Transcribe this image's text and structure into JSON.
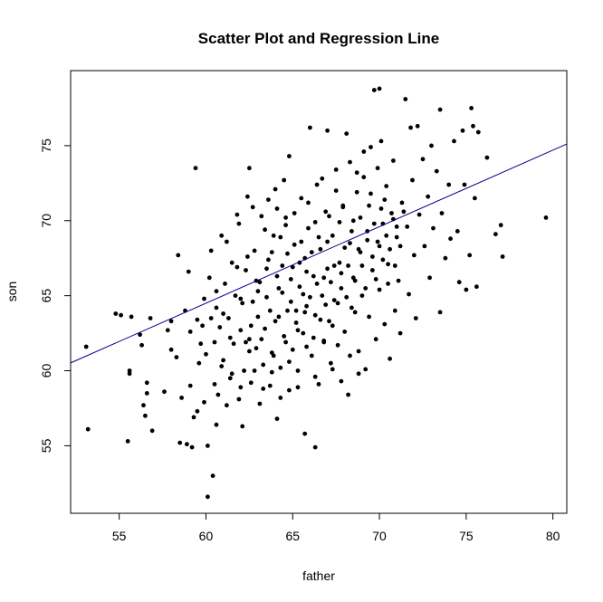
{
  "chart_data": {
    "type": "scatter",
    "title": "Scatter Plot and Regression Line",
    "xlabel": "father",
    "ylabel": "son",
    "xlim": [
      52.2,
      80.8
    ],
    "ylim": [
      50.5,
      80.0
    ],
    "xticks": [
      55,
      60,
      65,
      70,
      75,
      80
    ],
    "yticks": [
      55,
      60,
      65,
      70,
      75
    ],
    "regression_line": {
      "intercept": 33.9,
      "slope": 0.51,
      "color": "#00008b"
    },
    "point_color": "#000000",
    "points": [
      [
        53.1,
        61.6
      ],
      [
        53.2,
        56.1
      ],
      [
        54.8,
        63.8
      ],
      [
        55.1,
        63.7
      ],
      [
        55.5,
        55.3
      ],
      [
        55.6,
        59.8
      ],
      [
        55.7,
        63.6
      ],
      [
        55.6,
        60.0
      ],
      [
        56.2,
        62.4
      ],
      [
        56.3,
        61.7
      ],
      [
        56.4,
        57.7
      ],
      [
        56.5,
        57.0
      ],
      [
        56.6,
        58.5
      ],
      [
        56.6,
        59.2
      ],
      [
        56.8,
        63.5
      ],
      [
        56.9,
        56.0
      ],
      [
        57.6,
        58.6
      ],
      [
        57.8,
        62.7
      ],
      [
        58.0,
        63.3
      ],
      [
        58.0,
        61.4
      ],
      [
        58.3,
        60.9
      ],
      [
        58.4,
        67.7
      ],
      [
        58.5,
        55.2
      ],
      [
        58.6,
        58.2
      ],
      [
        58.8,
        64.0
      ],
      [
        58.9,
        55.1
      ],
      [
        59.0,
        66.6
      ],
      [
        59.1,
        59.0
      ],
      [
        59.1,
        62.6
      ],
      [
        59.2,
        54.9
      ],
      [
        59.3,
        56.9
      ],
      [
        59.4,
        73.5
      ],
      [
        59.5,
        57.3
      ],
      [
        59.6,
        60.5
      ],
      [
        59.7,
        61.8
      ],
      [
        59.8,
        63.0
      ],
      [
        59.9,
        57.9
      ],
      [
        60.0,
        61.1
      ],
      [
        60.1,
        55.0
      ],
      [
        60.1,
        51.6
      ],
      [
        60.2,
        66.2
      ],
      [
        60.3,
        63.5
      ],
      [
        60.3,
        68.0
      ],
      [
        60.4,
        53.0
      ],
      [
        60.5,
        59.1
      ],
      [
        60.6,
        56.4
      ],
      [
        60.6,
        64.2
      ],
      [
        60.7,
        58.4
      ],
      [
        60.8,
        62.9
      ],
      [
        60.9,
        69.0
      ],
      [
        61.0,
        60.7
      ],
      [
        61.1,
        65.8
      ],
      [
        61.2,
        57.7
      ],
      [
        61.3,
        63.5
      ],
      [
        61.4,
        59.5
      ],
      [
        61.5,
        67.2
      ],
      [
        61.6,
        61.8
      ],
      [
        61.7,
        65.0
      ],
      [
        61.8,
        70.4
      ],
      [
        61.9,
        58.1
      ],
      [
        62.0,
        62.7
      ],
      [
        62.1,
        64.5
      ],
      [
        62.1,
        56.3
      ],
      [
        62.2,
        60.0
      ],
      [
        62.3,
        66.7
      ],
      [
        62.4,
        71.6
      ],
      [
        62.5,
        62.1
      ],
      [
        62.5,
        73.5
      ],
      [
        62.6,
        59.2
      ],
      [
        62.7,
        64.6
      ],
      [
        62.8,
        68.0
      ],
      [
        62.9,
        61.5
      ],
      [
        63.0,
        63.6
      ],
      [
        63.1,
        65.9
      ],
      [
        63.1,
        57.8
      ],
      [
        63.2,
        70.3
      ],
      [
        63.3,
        60.4
      ],
      [
        63.4,
        62.8
      ],
      [
        63.5,
        64.9
      ],
      [
        63.6,
        67.4
      ],
      [
        63.7,
        59.0
      ],
      [
        63.8,
        61.2
      ],
      [
        63.9,
        69.0
      ],
      [
        64.0,
        63.3
      ],
      [
        64.0,
        72.1
      ],
      [
        64.1,
        56.8
      ],
      [
        64.2,
        65.5
      ],
      [
        64.3,
        60.2
      ],
      [
        64.4,
        67.0
      ],
      [
        64.5,
        62.3
      ],
      [
        64.6,
        70.2
      ],
      [
        64.7,
        64.0
      ],
      [
        64.8,
        58.7
      ],
      [
        64.8,
        74.3
      ],
      [
        64.9,
        66.1
      ],
      [
        65.0,
        61.4
      ],
      [
        65.1,
        68.4
      ],
      [
        65.2,
        63.2
      ],
      [
        65.3,
        60.0
      ],
      [
        65.4,
        65.6
      ],
      [
        65.5,
        71.5
      ],
      [
        65.6,
        62.5
      ],
      [
        65.7,
        67.5
      ],
      [
        65.7,
        55.8
      ],
      [
        65.8,
        64.3
      ],
      [
        65.9,
        69.5
      ],
      [
        66.0,
        76.2
      ],
      [
        66.1,
        61.0
      ],
      [
        66.2,
        66.3
      ],
      [
        66.3,
        63.7
      ],
      [
        66.3,
        54.9
      ],
      [
        66.4,
        72.4
      ],
      [
        66.5,
        59.1
      ],
      [
        66.6,
        68.1
      ],
      [
        66.7,
        65.0
      ],
      [
        66.8,
        62.0
      ],
      [
        66.9,
        70.6
      ],
      [
        67.0,
        66.8
      ],
      [
        67.0,
        76.0
      ],
      [
        67.1,
        63.3
      ],
      [
        67.2,
        60.5
      ],
      [
        67.3,
        69.0
      ],
      [
        67.4,
        64.7
      ],
      [
        67.5,
        73.4
      ],
      [
        67.6,
        61.7
      ],
      [
        67.7,
        67.2
      ],
      [
        67.8,
        65.5
      ],
      [
        67.9,
        71.0
      ],
      [
        68.0,
        62.6
      ],
      [
        68.1,
        75.8
      ],
      [
        68.2,
        58.4
      ],
      [
        68.3,
        68.5
      ],
      [
        68.4,
        64.2
      ],
      [
        68.5,
        70.0
      ],
      [
        68.6,
        66.0
      ],
      [
        68.7,
        73.2
      ],
      [
        68.8,
        61.3
      ],
      [
        68.9,
        67.9
      ],
      [
        69.0,
        65.0
      ],
      [
        69.1,
        74.6
      ],
      [
        69.2,
        60.1
      ],
      [
        69.3,
        69.3
      ],
      [
        69.4,
        63.6
      ],
      [
        69.5,
        71.8
      ],
      [
        69.6,
        66.7
      ],
      [
        69.7,
        78.7
      ],
      [
        69.8,
        62.1
      ],
      [
        69.9,
        68.6
      ],
      [
        70.0,
        78.8
      ],
      [
        70.0,
        65.4
      ],
      [
        70.1,
        75.3
      ],
      [
        70.2,
        69.8
      ],
      [
        70.3,
        63.1
      ],
      [
        70.4,
        72.3
      ],
      [
        70.5,
        67.1
      ],
      [
        70.6,
        60.8
      ],
      [
        70.7,
        70.5
      ],
      [
        70.8,
        74.0
      ],
      [
        70.9,
        64.0
      ],
      [
        71.0,
        68.9
      ],
      [
        71.1,
        66.0
      ],
      [
        71.2,
        62.5
      ],
      [
        71.3,
        71.2
      ],
      [
        71.5,
        78.1
      ],
      [
        71.6,
        69.6
      ],
      [
        71.7,
        65.1
      ],
      [
        71.8,
        76.2
      ],
      [
        71.9,
        72.7
      ],
      [
        72.0,
        67.7
      ],
      [
        72.1,
        63.5
      ],
      [
        72.2,
        76.3
      ],
      [
        72.3,
        70.4
      ],
      [
        72.5,
        74.1
      ],
      [
        72.6,
        68.3
      ],
      [
        72.8,
        71.6
      ],
      [
        72.9,
        66.2
      ],
      [
        73.0,
        75.0
      ],
      [
        73.1,
        69.5
      ],
      [
        73.3,
        73.3
      ],
      [
        73.5,
        77.4
      ],
      [
        73.5,
        63.9
      ],
      [
        73.6,
        70.5
      ],
      [
        73.8,
        67.5
      ],
      [
        74.0,
        72.4
      ],
      [
        74.1,
        68.8
      ],
      [
        74.3,
        75.3
      ],
      [
        74.5,
        69.3
      ],
      [
        74.6,
        65.9
      ],
      [
        74.8,
        76.0
      ],
      [
        74.9,
        72.4
      ],
      [
        75.0,
        65.4
      ],
      [
        75.2,
        67.7
      ],
      [
        75.3,
        77.5
      ],
      [
        75.4,
        76.3
      ],
      [
        75.5,
        71.5
      ],
      [
        75.6,
        65.6
      ],
      [
        75.7,
        75.9
      ],
      [
        76.2,
        74.2
      ],
      [
        76.7,
        69.1
      ],
      [
        77.0,
        69.7
      ],
      [
        77.1,
        67.6
      ],
      [
        79.6,
        70.2
      ],
      [
        61.0,
        63.8
      ],
      [
        61.4,
        62.2
      ],
      [
        62.0,
        64.8
      ],
      [
        62.3,
        61.9
      ],
      [
        62.6,
        63.0
      ],
      [
        63.0,
        65.3
      ],
      [
        63.2,
        62.1
      ],
      [
        63.5,
        66.8
      ],
      [
        63.7,
        64.0
      ],
      [
        63.9,
        61.0
      ],
      [
        64.1,
        66.3
      ],
      [
        64.2,
        63.6
      ],
      [
        64.4,
        65.2
      ],
      [
        64.6,
        61.9
      ],
      [
        64.7,
        67.8
      ],
      [
        64.9,
        64.6
      ],
      [
        65.0,
        66.9
      ],
      [
        65.2,
        64.0
      ],
      [
        65.3,
        62.7
      ],
      [
        65.4,
        67.2
      ],
      [
        65.6,
        65.1
      ],
      [
        65.7,
        63.9
      ],
      [
        65.8,
        66.6
      ],
      [
        66.0,
        64.9
      ],
      [
        66.1,
        67.9
      ],
      [
        66.2,
        62.2
      ],
      [
        66.4,
        65.8
      ],
      [
        66.5,
        68.9
      ],
      [
        66.6,
        63.4
      ],
      [
        66.8,
        66.2
      ],
      [
        66.9,
        64.4
      ],
      [
        67.0,
        68.6
      ],
      [
        67.2,
        65.9
      ],
      [
        67.3,
        63.0
      ],
      [
        67.4,
        67.0
      ],
      [
        67.6,
        64.5
      ],
      [
        67.7,
        69.9
      ],
      [
        67.8,
        66.5
      ],
      [
        68.0,
        68.2
      ],
      [
        68.1,
        64.9
      ],
      [
        68.2,
        67.0
      ],
      [
        68.4,
        69.3
      ],
      [
        68.5,
        66.2
      ],
      [
        68.6,
        63.9
      ],
      [
        68.8,
        68.1
      ],
      [
        68.9,
        70.2
      ],
      [
        69.0,
        67.0
      ],
      [
        69.2,
        65.5
      ],
      [
        69.3,
        68.7
      ],
      [
        69.4,
        71.0
      ],
      [
        69.6,
        67.6
      ],
      [
        69.7,
        69.8
      ],
      [
        69.8,
        66.1
      ],
      [
        70.0,
        68.3
      ],
      [
        70.1,
        70.8
      ],
      [
        70.2,
        67.4
      ],
      [
        70.4,
        69.0
      ],
      [
        70.5,
        65.8
      ],
      [
        70.6,
        68.1
      ],
      [
        70.8,
        70.1
      ],
      [
        70.9,
        67.0
      ],
      [
        71.0,
        69.6
      ],
      [
        71.2,
        68.3
      ],
      [
        71.4,
        70.6
      ],
      [
        64.3,
        68.9
      ],
      [
        64.6,
        69.7
      ],
      [
        65.1,
        70.5
      ],
      [
        65.5,
        68.6
      ],
      [
        65.9,
        71.2
      ],
      [
        66.3,
        69.9
      ],
      [
        66.7,
        72.8
      ],
      [
        67.1,
        70.3
      ],
      [
        67.5,
        72.0
      ],
      [
        67.9,
        70.9
      ],
      [
        68.3,
        73.9
      ],
      [
        68.7,
        71.9
      ],
      [
        69.1,
        72.9
      ],
      [
        69.5,
        74.9
      ],
      [
        69.9,
        73.5
      ],
      [
        70.3,
        71.4
      ],
      [
        62.8,
        60.0
      ],
      [
        63.3,
        58.8
      ],
      [
        63.8,
        59.9
      ],
      [
        64.3,
        58.2
      ],
      [
        64.8,
        60.6
      ],
      [
        65.3,
        58.9
      ],
      [
        65.8,
        61.6
      ],
      [
        66.3,
        59.6
      ],
      [
        66.8,
        61.9
      ],
      [
        67.3,
        60.1
      ],
      [
        67.8,
        59.3
      ],
      [
        68.3,
        61.0
      ],
      [
        68.8,
        59.8
      ],
      [
        61.5,
        59.8
      ],
      [
        62.0,
        58.9
      ],
      [
        62.5,
        61.3
      ],
      [
        60.5,
        61.9
      ],
      [
        60.9,
        60.3
      ],
      [
        61.8,
        66.9
      ],
      [
        62.4,
        67.6
      ],
      [
        62.9,
        66.0
      ],
      [
        63.4,
        69.4
      ],
      [
        63.8,
        67.9
      ],
      [
        64.1,
        70.8
      ],
      [
        59.5,
        63.4
      ],
      [
        59.9,
        64.8
      ],
      [
        60.6,
        65.3
      ],
      [
        61.2,
        68.6
      ],
      [
        61.9,
        69.8
      ],
      [
        62.7,
        70.9
      ],
      [
        63.6,
        71.4
      ],
      [
        64.5,
        72.7
      ]
    ]
  }
}
